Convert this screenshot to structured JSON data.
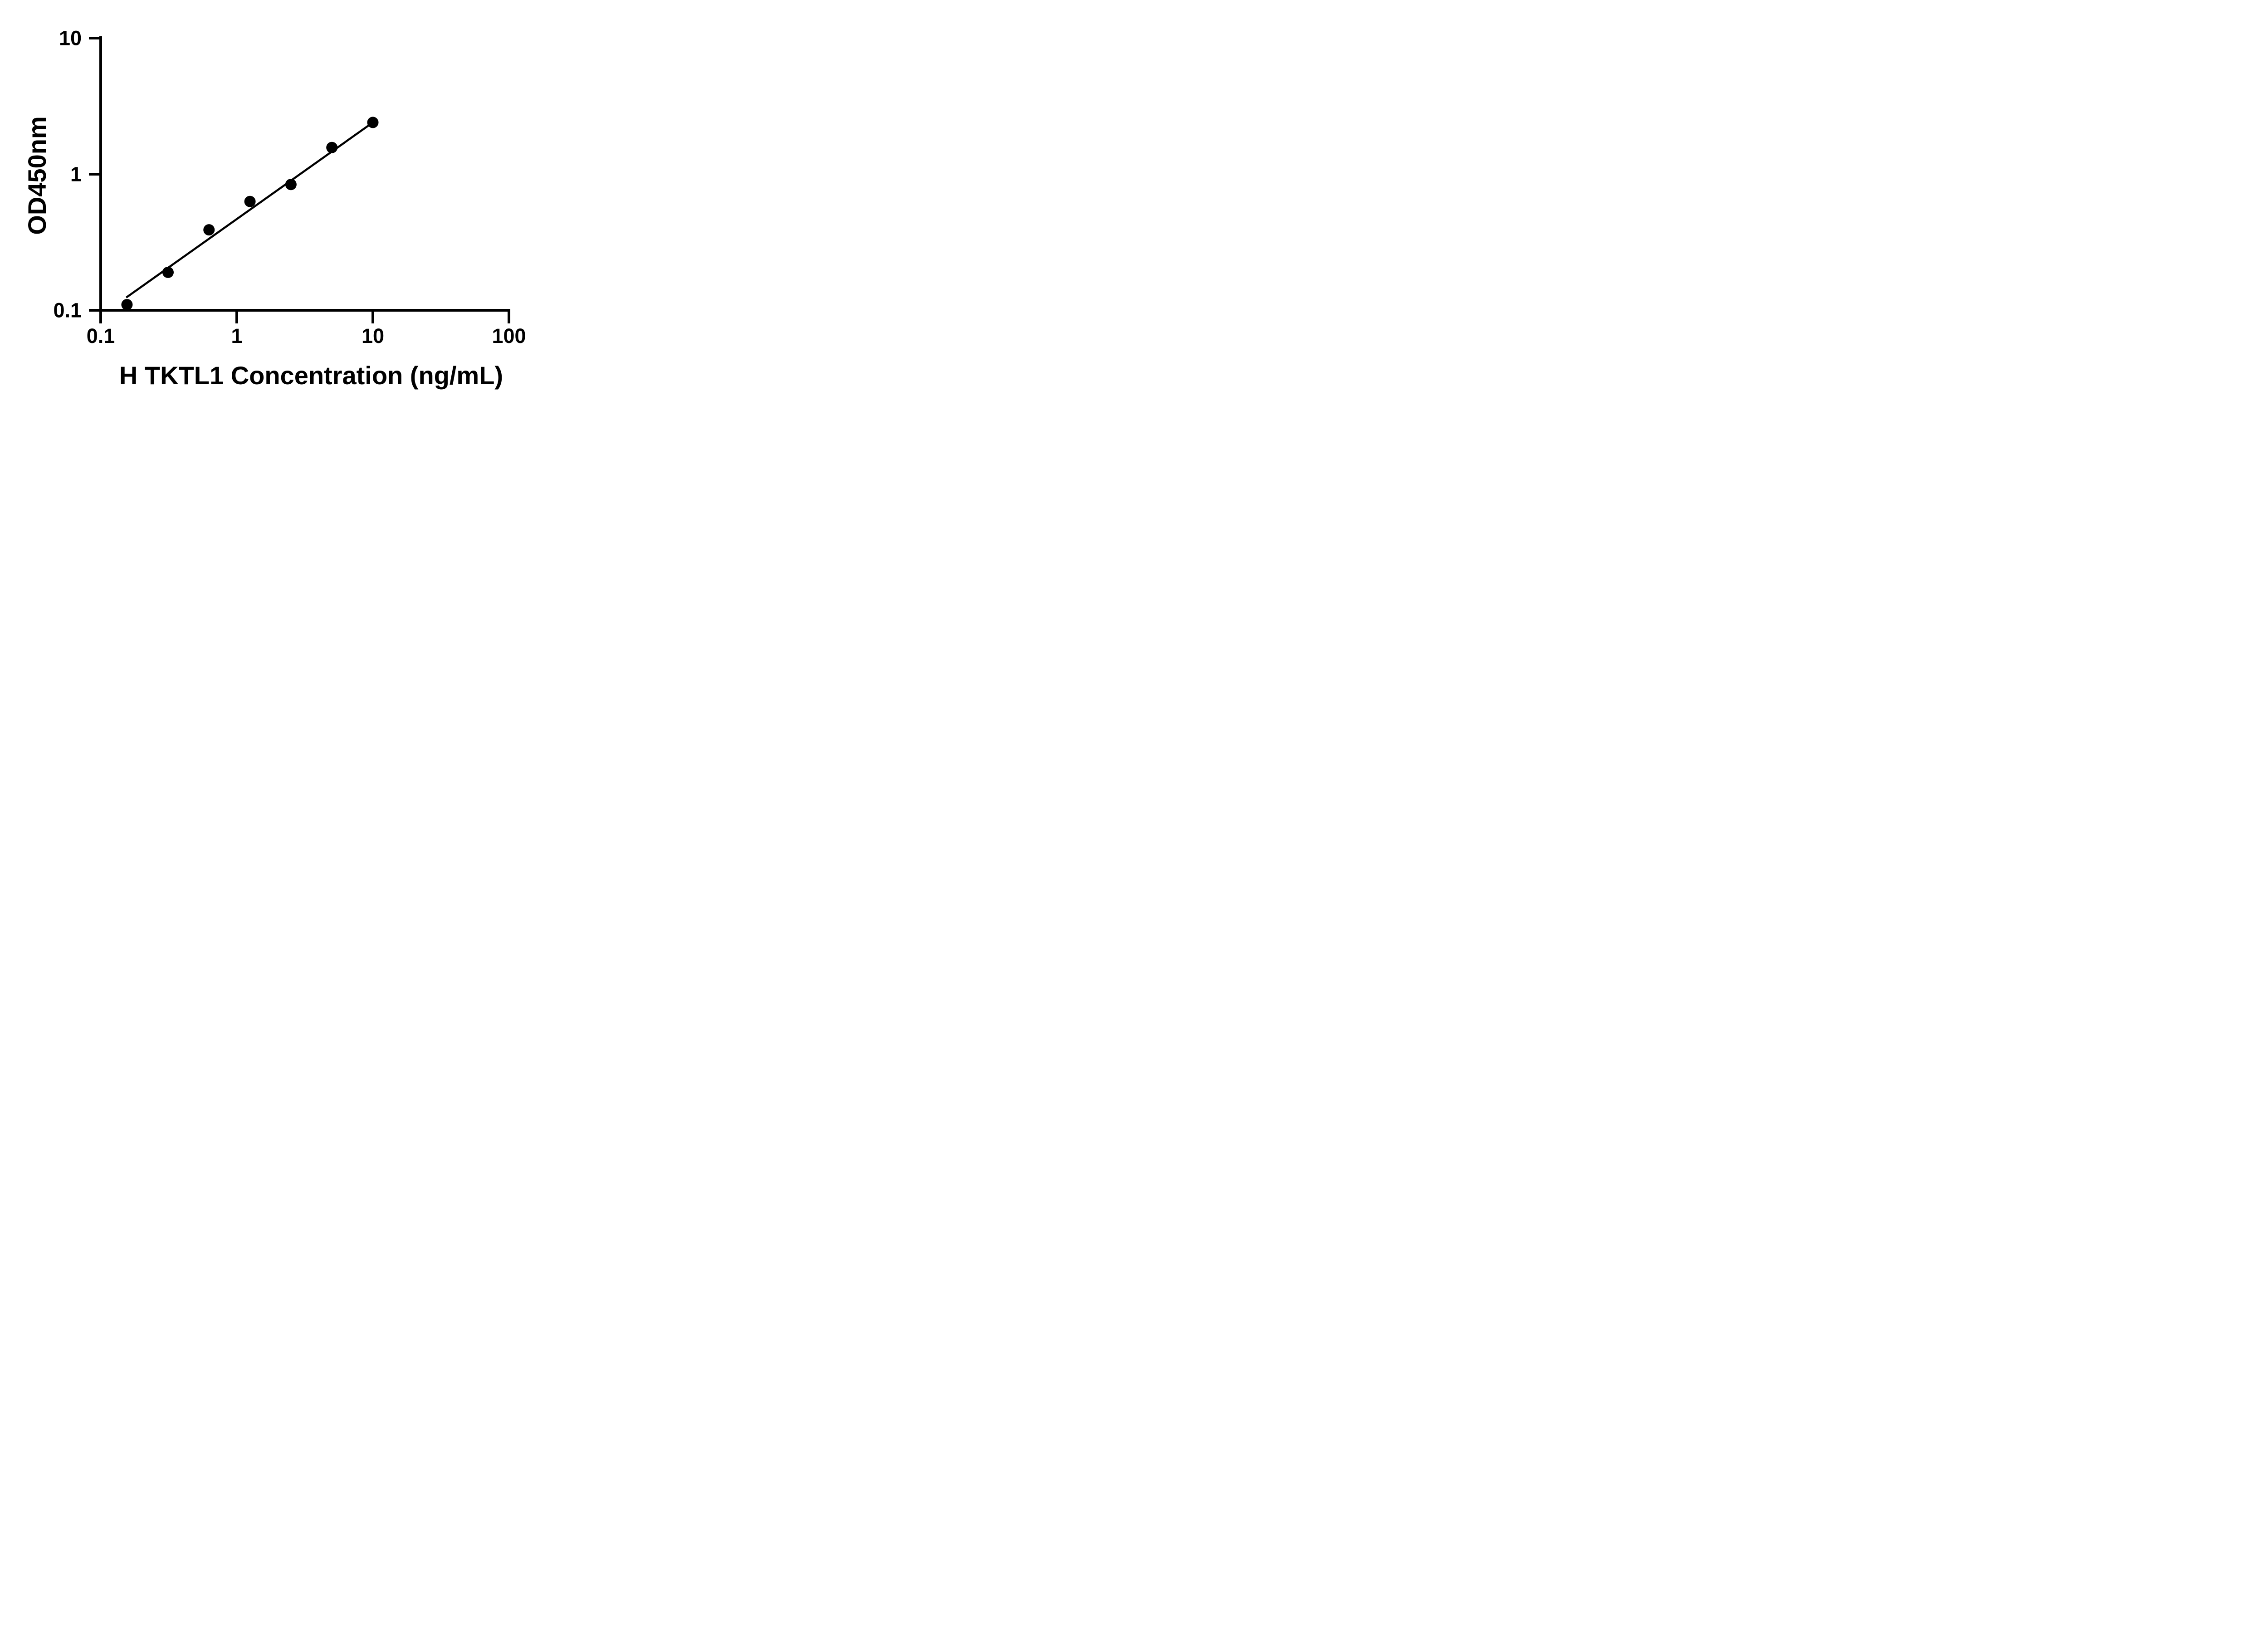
{
  "figure": {
    "background": "#ffffff",
    "ink_color": "#000000"
  },
  "chart_data": {
    "type": "scatter",
    "title": "",
    "xlabel": "H TKTL1 Concentration (ng/mL)",
    "ylabel": "OD450nm",
    "x_scale": "log10",
    "y_scale": "log10",
    "xlim": [
      0.1,
      100
    ],
    "ylim": [
      0.1,
      10
    ],
    "grid": false,
    "legend": false,
    "x_ticks": [
      {
        "value": 0.1,
        "label": "0.1"
      },
      {
        "value": 1,
        "label": "1"
      },
      {
        "value": 10,
        "label": "10"
      },
      {
        "value": 100,
        "label": "100"
      }
    ],
    "y_ticks": [
      {
        "value": 10,
        "label": "10"
      },
      {
        "value": 1,
        "label": "1"
      },
      {
        "value": 0.1,
        "label": "0.1"
      }
    ],
    "series": [
      {
        "name": "standard-curve-points",
        "marker": "filled-circle",
        "color": "#000000",
        "points": [
          {
            "x": 0.156,
            "y": 0.11
          },
          {
            "x": 0.3125,
            "y": 0.19
          },
          {
            "x": 0.625,
            "y": 0.39
          },
          {
            "x": 1.25,
            "y": 0.63
          },
          {
            "x": 2.5,
            "y": 0.84
          },
          {
            "x": 5,
            "y": 1.57
          },
          {
            "x": 10,
            "y": 2.4
          }
        ]
      }
    ],
    "trend_line": {
      "x1": 0.154,
      "y1": 0.124,
      "x2": 10,
      "y2": 2.4,
      "color": "#000000"
    }
  }
}
